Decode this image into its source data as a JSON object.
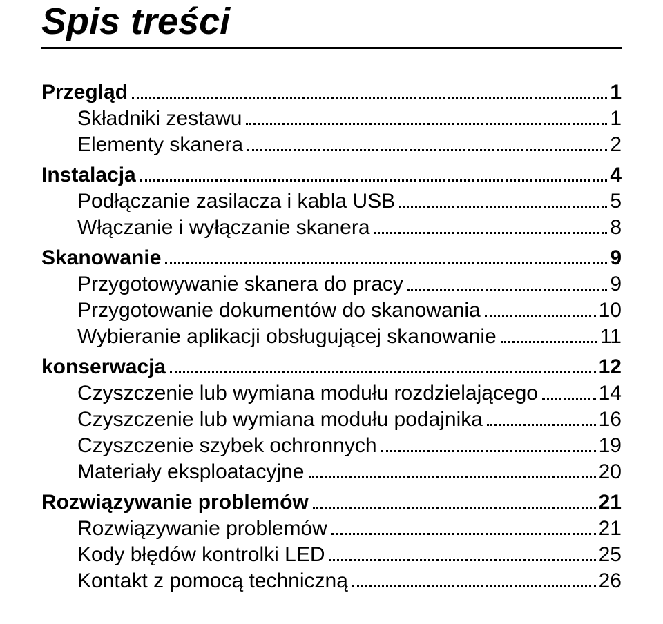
{
  "title": "Spis treści",
  "sections": [
    {
      "label": "Przegląd",
      "page": "1",
      "entries": [
        {
          "label": "Składniki zestawu",
          "page": "1"
        },
        {
          "label": "Elementy skanera",
          "page": "2"
        }
      ]
    },
    {
      "label": "Instalacja",
      "page": "4",
      "entries": [
        {
          "label": "Podłączanie zasilacza i kabla USB",
          "page": "5"
        },
        {
          "label": "Włączanie i wyłączanie skanera",
          "page": "8"
        }
      ]
    },
    {
      "label": "Skanowanie",
      "page": "9",
      "entries": [
        {
          "label": "Przygotowywanie skanera do pracy",
          "page": "9"
        },
        {
          "label": "Przygotowanie dokumentów do skanowania",
          "page": "10"
        },
        {
          "label": "Wybieranie aplikacji obsługującej skanowanie",
          "page": "11"
        }
      ]
    },
    {
      "label": "konserwacja",
      "page": "12",
      "entries": [
        {
          "label": "Czyszczenie lub wymiana modułu rozdzielającego",
          "page": "14"
        },
        {
          "label": "Czyszczenie lub wymiana modułu podajnika",
          "page": "16"
        },
        {
          "label": "Czyszczenie szybek ochronnych",
          "page": "19"
        },
        {
          "label": "Materiały eksploatacyjne",
          "page": "20"
        }
      ]
    },
    {
      "label": "Rozwiązywanie problemów",
      "page": "21",
      "entries": [
        {
          "label": "Rozwiązywanie problemów",
          "page": "21"
        },
        {
          "label": "Kody błędów kontrolki LED",
          "page": "25"
        },
        {
          "label": "Kontakt z pomocą techniczną",
          "page": "26"
        }
      ]
    }
  ]
}
